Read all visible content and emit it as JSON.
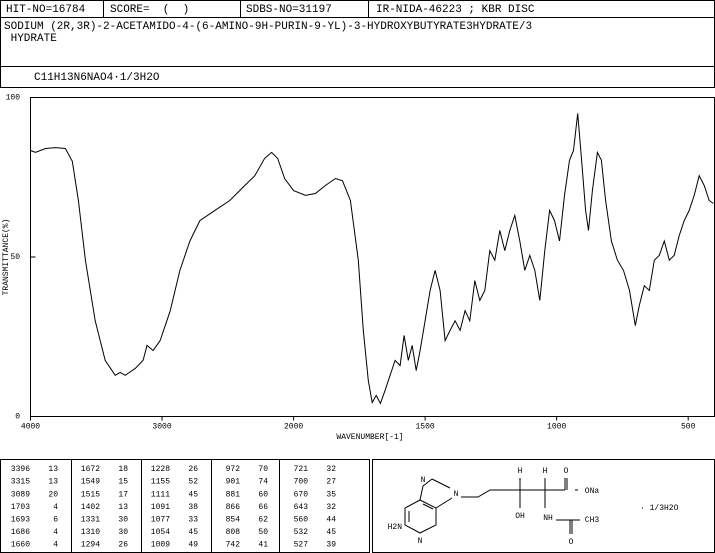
{
  "header": {
    "hit_no": "HIT-NO=16784",
    "score": "SCORE=  (  )",
    "sdbs_no": "SDBS-NO=31197",
    "method": "IR-NIDA-46223 ; KBR DISC",
    "name_lines": [
      "SODIUM (2R,3R)-2-ACETAMIDO-4-(6-AMINO-9H-PURIN-9-YL)-3-HYDROXYBUTYRATE3HYDRATE/3",
      " HYDRATE"
    ],
    "formula": "C11H13N6NAO4·1/3H2O"
  },
  "chart_data": {
    "type": "line",
    "x_label": "WAVENUMBER[-1]",
    "y_label": "TRANSMITTANCE(%)",
    "xlim": [
      4000,
      400
    ],
    "xscale_break": 2000,
    "ylim": [
      0,
      100
    ],
    "color": "#000000",
    "xticks": [
      4000,
      3000,
      2000,
      1500,
      1000,
      500
    ],
    "yticks": [
      0,
      50,
      100
    ],
    "x": [
      4000,
      3962,
      3886,
      3811,
      3735,
      3682,
      3636,
      3583,
      3508,
      3432,
      3356,
      3318,
      3280,
      3205,
      3144,
      3114,
      3068,
      3015,
      2939,
      2864,
      2788,
      2712,
      2598,
      2485,
      2371,
      2295,
      2220,
      2167,
      2121,
      2068,
      2000,
      1955,
      1917,
      1879,
      1841,
      1814,
      1784,
      1754,
      1735,
      1716,
      1701,
      1686,
      1670,
      1652,
      1633,
      1614,
      1595,
      1580,
      1564,
      1549,
      1534,
      1519,
      1500,
      1481,
      1462,
      1443,
      1424,
      1405,
      1386,
      1367,
      1348,
      1330,
      1311,
      1292,
      1273,
      1254,
      1235,
      1216,
      1197,
      1178,
      1159,
      1140,
      1121,
      1102,
      1083,
      1064,
      1045,
      1027,
      1008,
      989,
      970,
      951,
      936,
      920,
      905,
      890,
      879,
      864,
      845,
      830,
      814,
      792,
      769,
      746,
      723,
      701,
      686,
      667,
      648,
      629,
      610,
      591,
      572,
      553,
      534,
      515,
      496,
      477,
      458,
      439,
      420,
      405
    ],
    "values": [
      83.4,
      82.8,
      84,
      84.3,
      84,
      80,
      67.7,
      49,
      30,
      17.6,
      12.9,
      13.8,
      12.9,
      15,
      17.6,
      22.3,
      20.7,
      23.8,
      33,
      45.8,
      55,
      61.4,
      64.6,
      67.7,
      72.4,
      75.5,
      80.9,
      82.8,
      80.9,
      74.6,
      70.8,
      69.3,
      69.9,
      72.4,
      74.6,
      73.9,
      67.7,
      49,
      27,
      11.3,
      4.4,
      6.6,
      4.1,
      8.2,
      12.9,
      17.6,
      16,
      25.4,
      17.6,
      22.3,
      14.4,
      20.7,
      30,
      39.5,
      45.8,
      39.5,
      23.8,
      27,
      30,
      27,
      33.2,
      30,
      42.6,
      36.4,
      39.5,
      52,
      49,
      58.3,
      52,
      58.3,
      63,
      55,
      45.8,
      50.5,
      45.8,
      36.4,
      52,
      64.6,
      61.4,
      55,
      69.3,
      80.3,
      83.4,
      95,
      80.3,
      64.6,
      58.3,
      70.8,
      82.8,
      80.3,
      67.7,
      55,
      49,
      45.8,
      39.5,
      28.5,
      34.8,
      41,
      39.5,
      49,
      50.5,
      55,
      49,
      50.5,
      56.7,
      61.4,
      64.6,
      69.3,
      75.5,
      72.4,
      67.7,
      66.8
    ]
  },
  "peak_table": {
    "columns": [
      [
        [
          3396,
          13
        ],
        [
          3315,
          13
        ],
        [
          3089,
          20
        ],
        [
          1703,
          4
        ],
        [
          1693,
          6
        ],
        [
          1686,
          4
        ],
        [
          1660,
          4
        ]
      ],
      [
        [
          1672,
          18
        ],
        [
          1549,
          15
        ],
        [
          1515,
          17
        ],
        [
          1402,
          13
        ],
        [
          1331,
          30
        ],
        [
          1310,
          30
        ],
        [
          1294,
          26
        ]
      ],
      [
        [
          1228,
          26
        ],
        [
          1155,
          52
        ],
        [
          1111,
          45
        ],
        [
          1091,
          38
        ],
        [
          1077,
          33
        ],
        [
          1054,
          45
        ],
        [
          1009,
          49
        ]
      ],
      [
        [
          972,
          70
        ],
        [
          901,
          74
        ],
        [
          881,
          60
        ],
        [
          866,
          66
        ],
        [
          854,
          62
        ],
        [
          808,
          50
        ],
        [
          742,
          41
        ]
      ],
      [
        [
          721,
          32
        ],
        [
          700,
          27
        ],
        [
          670,
          35
        ],
        [
          643,
          32
        ],
        [
          560,
          44
        ],
        [
          532,
          45
        ],
        [
          527,
          39
        ]
      ]
    ]
  },
  "structure": {
    "labels": [
      "N",
      "N",
      "N",
      "H2N",
      "H",
      "OH",
      "H",
      "NH",
      "O",
      "CH3",
      "O",
      "ONa",
      "· 1/3H2O"
    ]
  }
}
